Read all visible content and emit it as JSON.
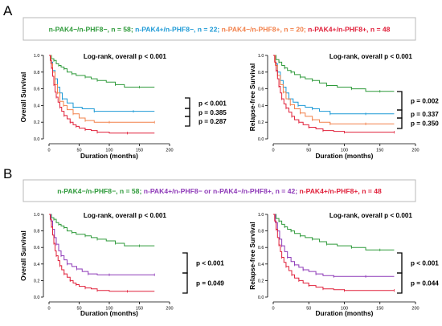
{
  "figure": {
    "panel_labels": [
      "A",
      "B"
    ],
    "legends": [
      [
        {
          "text": "n-PAK4−/n-PHF8−, n = 58; ",
          "color": "#2e9a3a"
        },
        {
          "text": "n-PAK4+/n-PHF8−, n = 22; ",
          "color": "#1e9ad6"
        },
        {
          "text": "n-PAK4−/n-PHF8+, n = 20; ",
          "color": "#f2804a"
        },
        {
          "text": "n-PAK4+/n-PHF8+, n = 48",
          "color": "#e0203a"
        }
      ],
      [
        {
          "text": "n-PAK4−/n-PHF8−, n = 58; ",
          "color": "#2e9a3a"
        },
        {
          "text": "n-PAK4+/n-PHF8− or n-PAK4−/n-PHF8+, n = 42; ",
          "color": "#8e3ab8"
        },
        {
          "text": "n-PAK4+/n-PHF8+, n = 48",
          "color": "#e0203a"
        }
      ]
    ]
  },
  "chart_data": [
    {
      "type": "line",
      "title": "Log-rank, overall p < 0.001",
      "xlabel": "Duration (months)",
      "ylabel": "Overall Survival",
      "xlim": [
        0,
        200
      ],
      "ylim": [
        0,
        1
      ],
      "xticks": [
        0,
        50,
        100,
        150,
        200
      ],
      "yticks": [
        0.0,
        0.2,
        0.4,
        0.6,
        0.8,
        1.0
      ],
      "grid": false,
      "comparisons": [
        "p < 0.001",
        "p = 0.385",
        "p = 0.287"
      ],
      "series": [
        {
          "color": "#2e9a3a",
          "x": [
            0,
            4,
            8,
            12,
            16,
            20,
            25,
            30,
            38,
            45,
            60,
            70,
            80,
            95,
            110,
            125,
            150,
            175
          ],
          "y": [
            1.0,
            0.96,
            0.94,
            0.9,
            0.88,
            0.86,
            0.84,
            0.8,
            0.78,
            0.76,
            0.74,
            0.72,
            0.7,
            0.68,
            0.65,
            0.62,
            0.62,
            0.62
          ]
        },
        {
          "color": "#1e9ad6",
          "x": [
            0,
            3,
            6,
            10,
            14,
            18,
            22,
            30,
            40,
            55,
            75,
            100,
            140,
            175
          ],
          "y": [
            1.0,
            0.92,
            0.82,
            0.72,
            0.62,
            0.55,
            0.48,
            0.43,
            0.38,
            0.36,
            0.33,
            0.33,
            0.33,
            0.33
          ]
        },
        {
          "color": "#f2804a",
          "x": [
            0,
            3,
            6,
            10,
            14,
            18,
            24,
            30,
            40,
            50,
            60,
            75,
            100,
            140,
            175
          ],
          "y": [
            1.0,
            0.9,
            0.8,
            0.65,
            0.55,
            0.45,
            0.4,
            0.35,
            0.3,
            0.25,
            0.22,
            0.2,
            0.2,
            0.2,
            0.2
          ]
        },
        {
          "color": "#e0203a",
          "x": [
            0,
            2,
            4,
            6,
            8,
            10,
            12,
            15,
            18,
            21,
            25,
            30,
            35,
            40,
            45,
            50,
            60,
            70,
            80,
            100,
            130,
            175
          ],
          "y": [
            1.0,
            0.94,
            0.85,
            0.75,
            0.65,
            0.56,
            0.5,
            0.44,
            0.38,
            0.33,
            0.28,
            0.24,
            0.2,
            0.17,
            0.15,
            0.13,
            0.11,
            0.1,
            0.08,
            0.07,
            0.07,
            0.07
          ]
        }
      ]
    },
    {
      "type": "line",
      "title": "Log-rank, overall p < 0.001",
      "xlabel": "Duration (months)",
      "ylabel": "Relapse-free Survival",
      "xlim": [
        0,
        200
      ],
      "ylim": [
        0,
        1
      ],
      "xticks": [
        0,
        50,
        100,
        150,
        200
      ],
      "yticks": [
        0.0,
        0.2,
        0.4,
        0.6,
        0.8,
        1.0
      ],
      "grid": false,
      "comparisons": [
        "p = 0.002",
        "p = 0.337",
        "p = 0.350"
      ],
      "series": [
        {
          "color": "#2e9a3a",
          "x": [
            0,
            4,
            8,
            12,
            16,
            20,
            25,
            30,
            38,
            45,
            55,
            65,
            75,
            90,
            110,
            130,
            150,
            170
          ],
          "y": [
            1.0,
            0.95,
            0.92,
            0.88,
            0.85,
            0.82,
            0.8,
            0.77,
            0.74,
            0.72,
            0.7,
            0.67,
            0.64,
            0.62,
            0.6,
            0.57,
            0.57,
            0.57
          ]
        },
        {
          "color": "#1e9ad6",
          "x": [
            0,
            3,
            6,
            10,
            14,
            18,
            22,
            28,
            35,
            45,
            55,
            65,
            80,
            100,
            130,
            170
          ],
          "y": [
            1.0,
            0.9,
            0.8,
            0.7,
            0.62,
            0.55,
            0.48,
            0.44,
            0.4,
            0.38,
            0.36,
            0.33,
            0.3,
            0.3,
            0.3,
            0.3
          ]
        },
        {
          "color": "#f2804a",
          "x": [
            0,
            3,
            6,
            10,
            14,
            18,
            24,
            30,
            38,
            45,
            55,
            65,
            80,
            100,
            130,
            170
          ],
          "y": [
            1.0,
            0.88,
            0.76,
            0.65,
            0.56,
            0.48,
            0.41,
            0.36,
            0.31,
            0.27,
            0.23,
            0.2,
            0.18,
            0.18,
            0.18,
            0.18
          ]
        },
        {
          "color": "#e0203a",
          "x": [
            0,
            2,
            4,
            6,
            8,
            10,
            12,
            15,
            18,
            22,
            26,
            30,
            36,
            42,
            50,
            60,
            70,
            85,
            100,
            130,
            170
          ],
          "y": [
            1.0,
            0.92,
            0.82,
            0.72,
            0.63,
            0.55,
            0.48,
            0.42,
            0.37,
            0.32,
            0.27,
            0.23,
            0.2,
            0.17,
            0.14,
            0.12,
            0.1,
            0.09,
            0.08,
            0.08,
            0.08
          ]
        }
      ]
    },
    {
      "type": "line",
      "title": "Log-rank, overall p < 0.001",
      "xlabel": "Duration (months)",
      "ylabel": "Overall Survival",
      "xlim": [
        0,
        200
      ],
      "ylim": [
        0,
        1
      ],
      "xticks": [
        0,
        50,
        100,
        150,
        200
      ],
      "yticks": [
        0.0,
        0.2,
        0.4,
        0.6,
        0.8,
        1.0
      ],
      "grid": false,
      "comparisons": [
        "p < 0.001",
        "p = 0.049"
      ],
      "series": [
        {
          "color": "#2e9a3a",
          "x": [
            0,
            4,
            8,
            12,
            16,
            20,
            25,
            30,
            38,
            45,
            60,
            70,
            80,
            95,
            110,
            125,
            150,
            175
          ],
          "y": [
            1.0,
            0.96,
            0.94,
            0.9,
            0.88,
            0.86,
            0.84,
            0.8,
            0.78,
            0.76,
            0.74,
            0.72,
            0.7,
            0.68,
            0.65,
            0.62,
            0.62,
            0.62
          ]
        },
        {
          "color": "#8e3ab8",
          "x": [
            0,
            3,
            6,
            9,
            12,
            16,
            20,
            25,
            30,
            38,
            46,
            55,
            65,
            80,
            100,
            140,
            175
          ],
          "y": [
            1.0,
            0.92,
            0.82,
            0.72,
            0.64,
            0.56,
            0.5,
            0.45,
            0.4,
            0.37,
            0.34,
            0.31,
            0.28,
            0.27,
            0.27,
            0.27,
            0.27
          ]
        },
        {
          "color": "#e0203a",
          "x": [
            0,
            2,
            4,
            6,
            8,
            10,
            12,
            15,
            18,
            21,
            25,
            30,
            35,
            40,
            45,
            50,
            60,
            70,
            80,
            100,
            130,
            175
          ],
          "y": [
            1.0,
            0.94,
            0.85,
            0.75,
            0.65,
            0.56,
            0.5,
            0.44,
            0.38,
            0.33,
            0.28,
            0.24,
            0.2,
            0.17,
            0.15,
            0.13,
            0.11,
            0.1,
            0.08,
            0.07,
            0.07,
            0.07
          ]
        }
      ]
    },
    {
      "type": "line",
      "title": "Log-rank, overall p < 0.001",
      "xlabel": "Duration (months)",
      "ylabel": "Relapse-free Survival",
      "xlim": [
        0,
        200
      ],
      "ylim": [
        0,
        1
      ],
      "xticks": [
        0,
        50,
        100,
        150,
        200
      ],
      "yticks": [
        0.0,
        0.2,
        0.4,
        0.6,
        0.8,
        1.0
      ],
      "grid": false,
      "comparisons": [
        "p < 0.001",
        "p = 0.044"
      ],
      "series": [
        {
          "color": "#2e9a3a",
          "x": [
            0,
            4,
            8,
            12,
            16,
            20,
            25,
            30,
            38,
            45,
            55,
            65,
            75,
            90,
            110,
            130,
            150,
            170
          ],
          "y": [
            1.0,
            0.95,
            0.92,
            0.88,
            0.85,
            0.82,
            0.8,
            0.77,
            0.74,
            0.72,
            0.7,
            0.67,
            0.64,
            0.62,
            0.6,
            0.57,
            0.57,
            0.57
          ]
        },
        {
          "color": "#8e3ab8",
          "x": [
            0,
            3,
            6,
            9,
            12,
            16,
            20,
            25,
            30,
            36,
            42,
            50,
            60,
            70,
            85,
            100,
            130,
            170
          ],
          "y": [
            1.0,
            0.9,
            0.8,
            0.7,
            0.62,
            0.55,
            0.48,
            0.43,
            0.39,
            0.36,
            0.33,
            0.31,
            0.28,
            0.26,
            0.25,
            0.25,
            0.25,
            0.25
          ]
        },
        {
          "color": "#e0203a",
          "x": [
            0,
            2,
            4,
            6,
            8,
            10,
            12,
            15,
            18,
            22,
            26,
            30,
            36,
            42,
            50,
            60,
            70,
            85,
            100,
            130,
            170
          ],
          "y": [
            1.0,
            0.92,
            0.82,
            0.72,
            0.63,
            0.55,
            0.48,
            0.42,
            0.37,
            0.32,
            0.27,
            0.23,
            0.2,
            0.17,
            0.14,
            0.12,
            0.1,
            0.09,
            0.08,
            0.08,
            0.08
          ]
        }
      ]
    }
  ]
}
